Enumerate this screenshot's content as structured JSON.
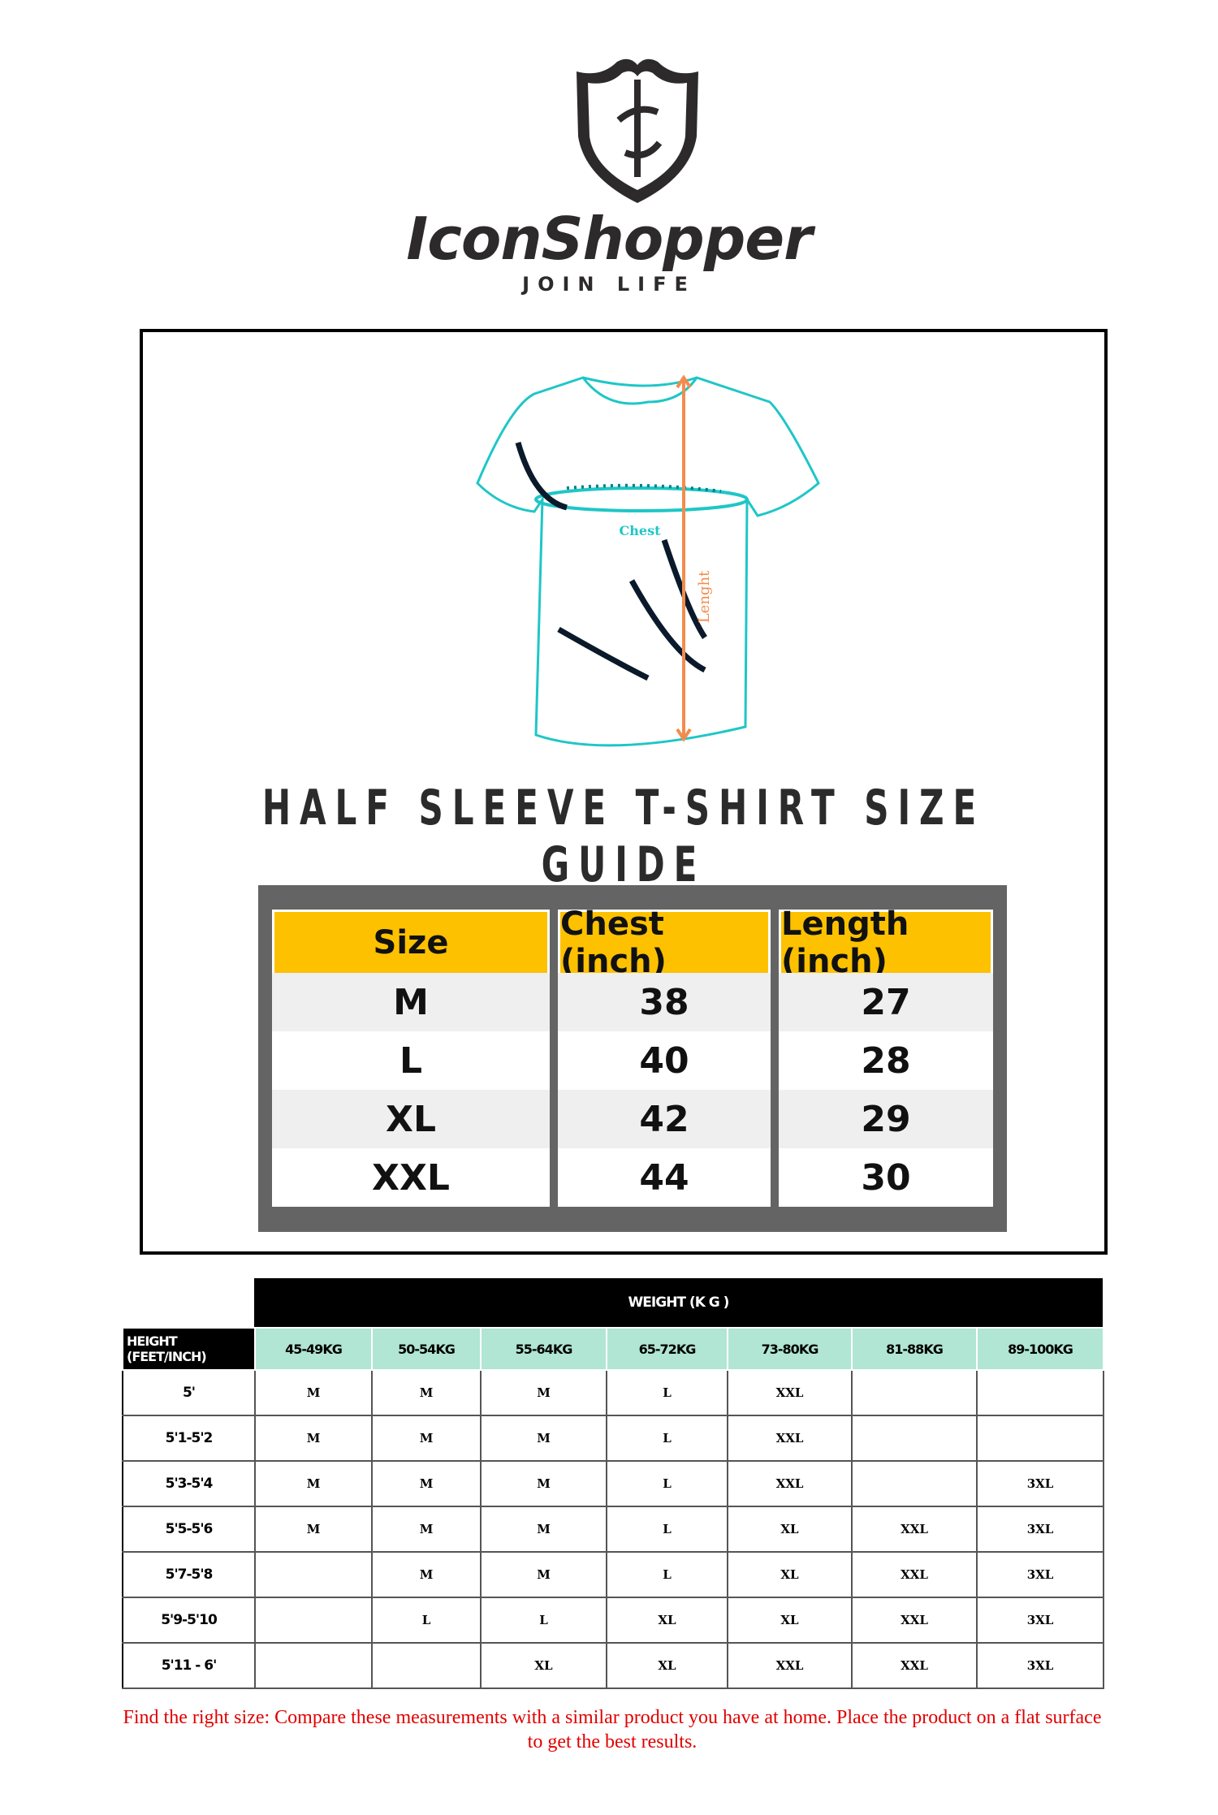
{
  "brand": {
    "name": "IconShopper",
    "tagline": "JOIN LIFE",
    "logo": "shield-sword-logo"
  },
  "diagram": {
    "chest_label": "Chest",
    "length_label": "Lenght",
    "colors": {
      "outline": "#1fc6c6",
      "length_arrow": "#f28c4e"
    }
  },
  "guide_title": "HALF SLEEVE T-SHIRT SIZE GUIDE",
  "size_table": {
    "headers": [
      "Size",
      "Chest (inch)",
      "Length (inch)"
    ],
    "rows": [
      [
        "M",
        "38",
        "27"
      ],
      [
        "L",
        "40",
        "28"
      ],
      [
        "XL",
        "42",
        "29"
      ],
      [
        "XXL",
        "44",
        "30"
      ]
    ],
    "header_color": "#fdc100"
  },
  "weight_table": {
    "title": "WEIGHT (K G )",
    "corner": "HEIGHT (FEET/INCH)",
    "columns": [
      "45-49KG",
      "50-54KG",
      "55-64KG",
      "65-72KG",
      "73-80KG",
      "81-88KG",
      "89-100KG"
    ],
    "rows": [
      {
        "height": "5'",
        "sizes": [
          "M",
          "M",
          "M",
          "L",
          "XXL",
          "",
          ""
        ]
      },
      {
        "height": "5'1-5'2",
        "sizes": [
          "M",
          "M",
          "M",
          "L",
          "XXL",
          "",
          ""
        ]
      },
      {
        "height": "5'3-5'4",
        "sizes": [
          "M",
          "M",
          "M",
          "L",
          "XXL",
          "",
          "3XL"
        ]
      },
      {
        "height": "5'5-5'6",
        "sizes": [
          "M",
          "M",
          "M",
          "L",
          "XL",
          "XXL",
          "3XL"
        ]
      },
      {
        "height": "5'7-5'8",
        "sizes": [
          "",
          "M",
          "M",
          "L",
          "XL",
          "XXL",
          "3XL"
        ]
      },
      {
        "height": "5'9-5'10",
        "sizes": [
          "",
          "L",
          "L",
          "XL",
          "XL",
          "XXL",
          "3XL"
        ]
      },
      {
        "height": "5'11 - 6'",
        "sizes": [
          "",
          "",
          "XL",
          "XL",
          "XXL",
          "XXL",
          "3XL"
        ]
      }
    ],
    "header_color": "#b0e6d3"
  },
  "note": "Find the right size: Compare these measurements with a similar product you have at home. Place the product on a flat surface to get the best results."
}
